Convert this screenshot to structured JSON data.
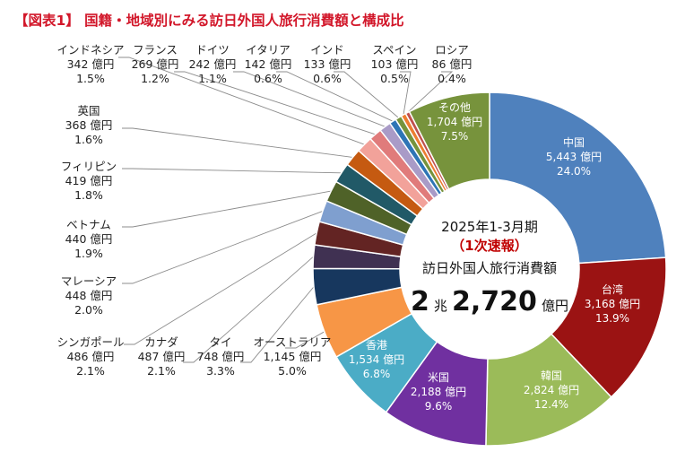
{
  "title": "【図表1】 国籍・地域別にみる訪日外国人旅行消費額と構成比",
  "center": {
    "period": "2025年1-3月期",
    "flash": "（1次速報）",
    "metric": "訪日外国人旅行消費額",
    "total_pre": "2",
    "total_unit1": "兆",
    "total_main": "2,720",
    "total_unit2": "億円"
  },
  "chart_data": {
    "type": "donut",
    "unit": "億円",
    "slices": [
      {
        "name": "中国",
        "value": 5443,
        "value_label": "5,443 億円",
        "pct": "24.0%",
        "color": "#4f81bd"
      },
      {
        "name": "台湾",
        "value": 3168,
        "value_label": "3,168 億円",
        "pct": "13.9%",
        "color": "#9b1313"
      },
      {
        "name": "韓国",
        "value": 2824,
        "value_label": "2,824 億円",
        "pct": "12.4%",
        "color": "#9bbb59"
      },
      {
        "name": "米国",
        "value": 2188,
        "value_label": "2,188 億円",
        "pct": "9.6%",
        "color": "#7030a0"
      },
      {
        "name": "香港",
        "value": 1534,
        "value_label": "1,534 億円",
        "pct": "6.8%",
        "color": "#4bacc6"
      },
      {
        "name": "オーストラリア",
        "value": 1145,
        "value_label": "1,145 億円",
        "pct": "5.0%",
        "color": "#f79646"
      },
      {
        "name": "タイ",
        "value": 748,
        "value_label": "748 億円",
        "pct": "3.3%",
        "color": "#17375e"
      },
      {
        "name": "カナダ",
        "value": 487,
        "value_label": "487 億円",
        "pct": "2.1%",
        "color": "#403152"
      },
      {
        "name": "シンガポール",
        "value": 486,
        "value_label": "486 億円",
        "pct": "2.1%",
        "color": "#632423"
      },
      {
        "name": "マレーシア",
        "value": 448,
        "value_label": "448 億円",
        "pct": "2.0%",
        "color": "#7f9fcf"
      },
      {
        "name": "ベトナム",
        "value": 440,
        "value_label": "440 億円",
        "pct": "1.9%",
        "color": "#4f6228"
      },
      {
        "name": "フィリピン",
        "value": 419,
        "value_label": "419 億円",
        "pct": "1.8%",
        "color": "#215967"
      },
      {
        "name": "英国",
        "value": 368,
        "value_label": "368 億円",
        "pct": "1.6%",
        "color": "#c55a11"
      },
      {
        "name": "インドネシア",
        "value": 342,
        "value_label": "342 億円",
        "pct": "1.5%",
        "color": "#f2a29a"
      },
      {
        "name": "フランス",
        "value": 269,
        "value_label": "269 億円",
        "pct": "1.2%",
        "color": "#e07b7b"
      },
      {
        "name": "ドイツ",
        "value": 242,
        "value_label": "242 億円",
        "pct": "1.1%",
        "color": "#a99bc7"
      },
      {
        "name": "イタリア",
        "value": 142,
        "value_label": "142 億円",
        "pct": "0.6%",
        "color": "#2e75b6"
      },
      {
        "name": "インド",
        "value": 133,
        "value_label": "133 億円",
        "pct": "0.6%",
        "color": "#76933c"
      },
      {
        "name": "スペイン",
        "value": 103,
        "value_label": "103 億円",
        "pct": "0.5%",
        "color": "#ed7d31"
      },
      {
        "name": "ロシア",
        "value": 86,
        "value_label": "86 億円",
        "pct": "0.4%",
        "color": "#c0504d"
      },
      {
        "name": "その他",
        "value": 1704,
        "value_label": "1,704 億円",
        "pct": "7.5%",
        "color": "#77933c"
      }
    ]
  }
}
